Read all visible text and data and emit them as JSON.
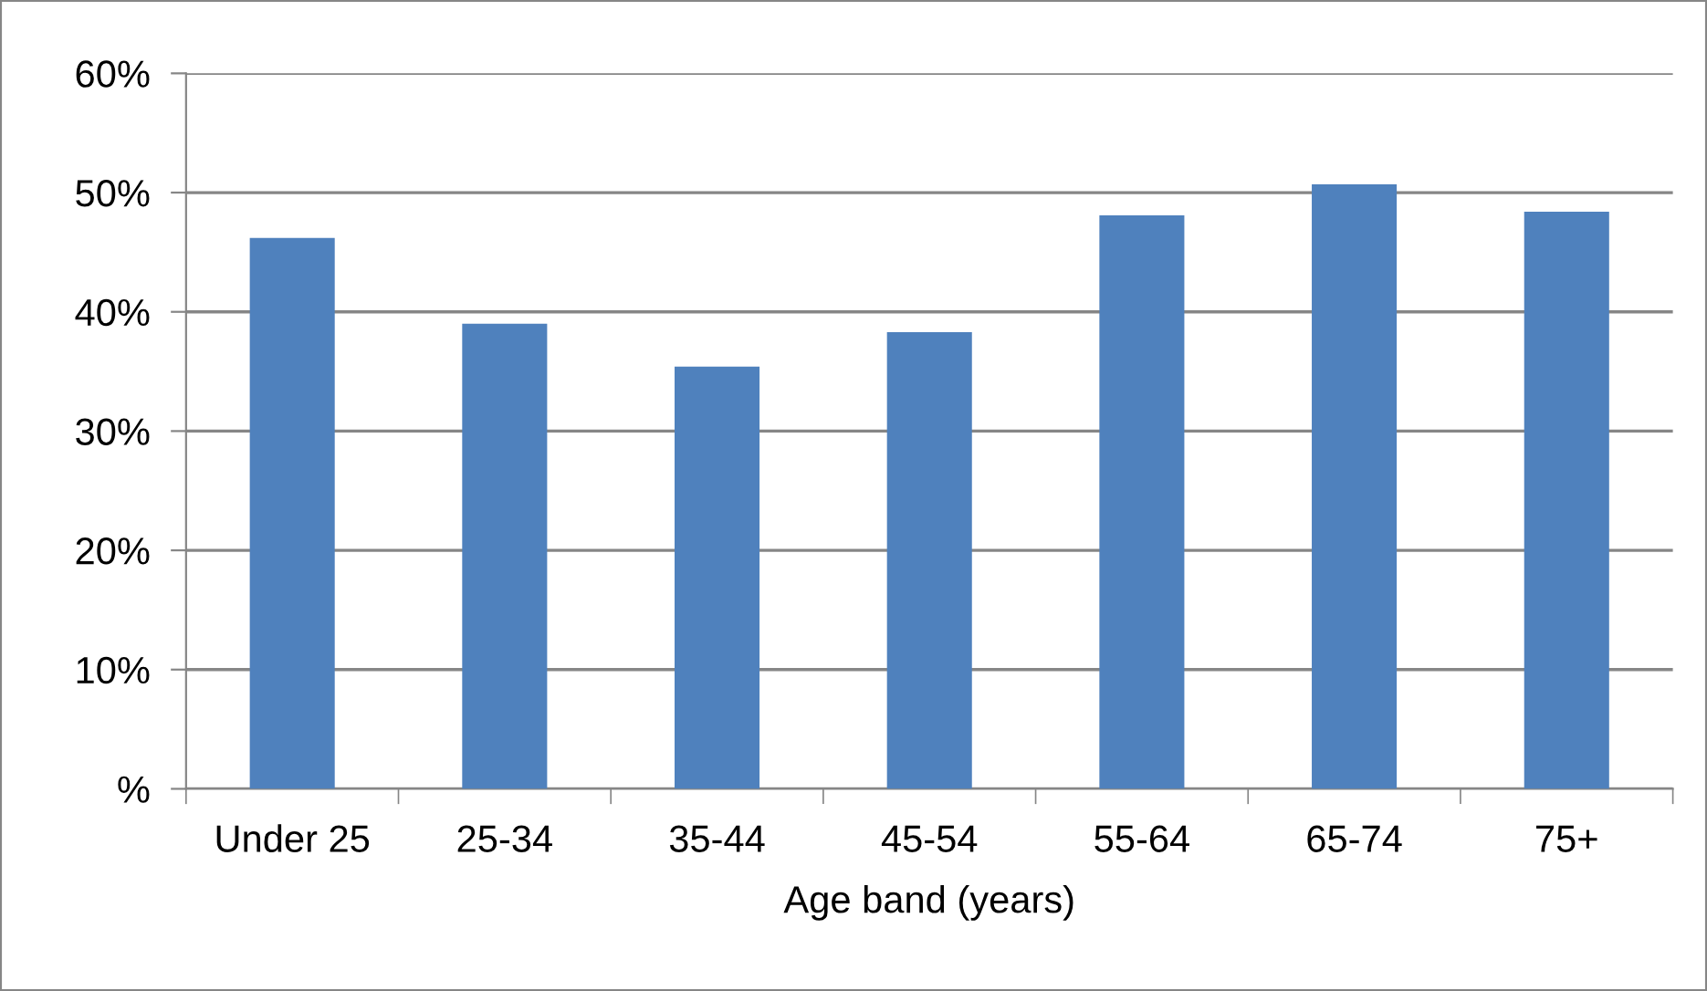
{
  "chart_data": {
    "type": "bar",
    "xlabel": "Age band (years)",
    "categories": [
      "Under 25",
      "25-34",
      "35-44",
      "45-54",
      "55-64",
      "65-74",
      "75+"
    ],
    "values": [
      46.2,
      39.0,
      35.4,
      38.3,
      48.1,
      50.7,
      48.4
    ],
    "color": "#4f81bd",
    "ylim": [
      0,
      60
    ],
    "yticks": [
      {
        "value": 0,
        "label": "%"
      },
      {
        "value": 10,
        "label": "10%"
      },
      {
        "value": 20,
        "label": "20%"
      },
      {
        "value": 30,
        "label": "30%"
      },
      {
        "value": 40,
        "label": "40%"
      },
      {
        "value": 50,
        "label": "50%"
      },
      {
        "value": 60,
        "label": "60%"
      }
    ],
    "grid": "y"
  }
}
